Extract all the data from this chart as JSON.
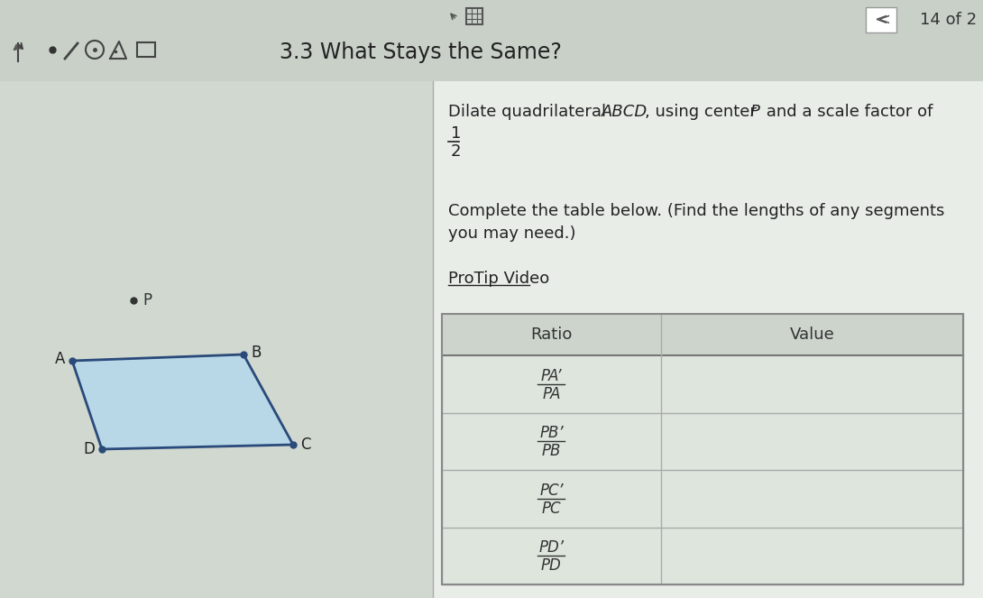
{
  "title": "3.3 What Stays the Same?",
  "page_indicator": "14 of 2",
  "complete_text": "Complete the table below. (Find the lengths of any segments",
  "complete_text2": "you may need.)",
  "protip_text": "ProTip Video",
  "bg_color": "#e8ede8",
  "left_panel_bg": "#d0d8d0",
  "quad_fill": "#b8d8e8",
  "quad_stroke": "#2a4a7a",
  "header_ratio": "Ratio",
  "header_value": "Value",
  "rows": [
    {
      "numerator": "PA’",
      "denominator": "PA"
    },
    {
      "numerator": "PB’",
      "denominator": "PB"
    },
    {
      "numerator": "PC’",
      "denominator": "PC"
    },
    {
      "numerator": "PD’",
      "denominator": "PD"
    }
  ],
  "table_line_color": "#aaaaaa",
  "table_bg": "#dde5dd",
  "header_bg": "#ccd4cc"
}
